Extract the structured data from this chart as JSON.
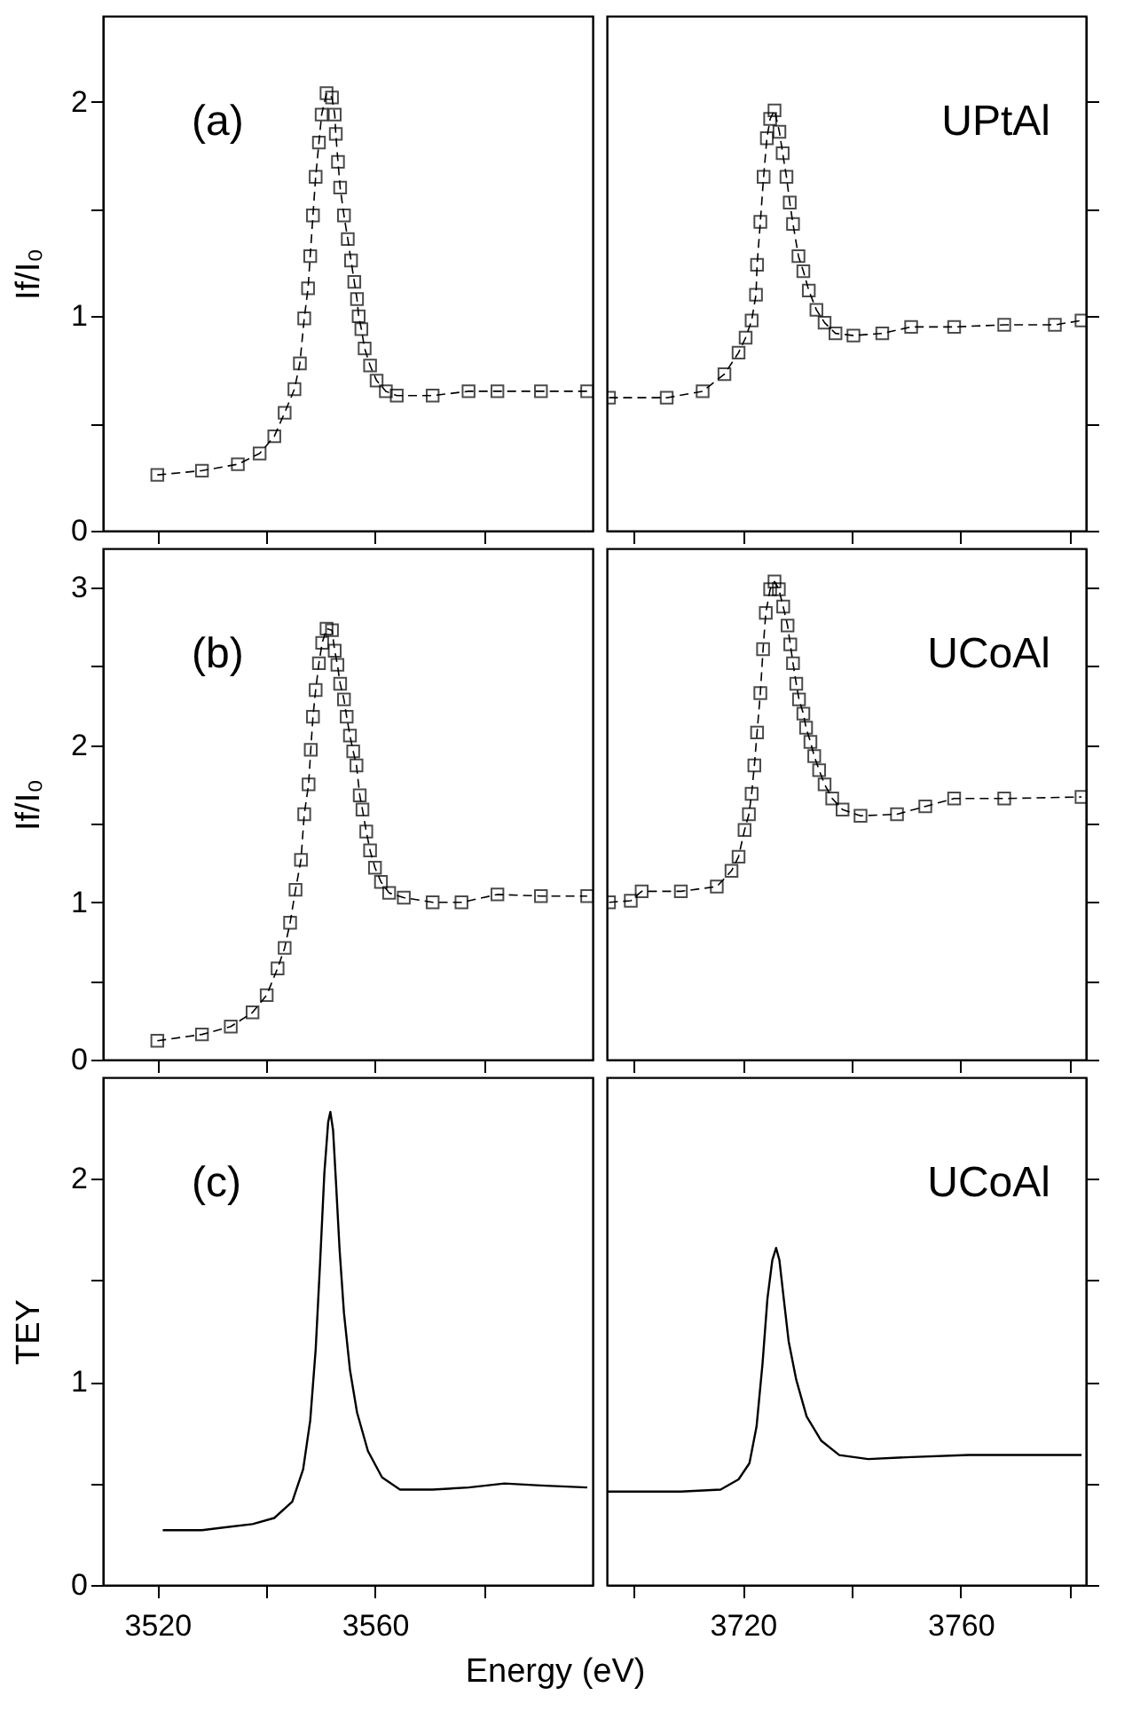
{
  "chart_data": [
    {
      "type": "line",
      "marker": "square",
      "line_style": "dashed",
      "color": "#000000",
      "ylabel": "If/I₀",
      "annotations": [
        "(a)"
      ],
      "tick_labels": "y",
      "xlim": [
        3510,
        3600
      ],
      "xticks": [
        3520,
        {
          "value": 3540,
          "label": null
        },
        3560,
        {
          "value": 3580,
          "label": null
        }
      ],
      "ylim": [
        0,
        2.4
      ],
      "yticks": [
        0,
        {
          "value": 0.5,
          "label": null
        },
        1,
        {
          "value": 1.5,
          "label": null
        },
        2
      ],
      "x": [
        3520,
        3528.2,
        3534.8,
        3538.8,
        3541.5,
        3543.4,
        3545.2,
        3546.2,
        3547,
        3547.7,
        3548.1,
        3548.6,
        3549.1,
        3549.7,
        3550.2,
        3551.1,
        3552.1,
        3552.6,
        3552.8,
        3553.2,
        3553.6,
        3554.3,
        3555,
        3555.6,
        3556.2,
        3556.7,
        3557,
        3557.5,
        3558.1,
        3559.1,
        3560.3,
        3562,
        3564,
        3570.6,
        3577.2,
        3582.5,
        3590.5,
        3599
      ],
      "values": [
        0.26,
        0.28,
        0.31,
        0.36,
        0.44,
        0.55,
        0.66,
        0.78,
        0.99,
        1.13,
        1.28,
        1.47,
        1.65,
        1.81,
        1.94,
        2.04,
        2.02,
        1.94,
        1.85,
        1.72,
        1.6,
        1.47,
        1.36,
        1.26,
        1.16,
        1.08,
        1.0,
        0.94,
        0.85,
        0.77,
        0.7,
        0.65,
        0.63,
        0.63,
        0.65,
        0.65,
        0.65,
        0.65
      ]
    },
    {
      "type": "line",
      "marker": "square",
      "line_style": "dashed",
      "color": "#000000",
      "annotations": [
        "UPtAl"
      ],
      "tick_labels": false,
      "xlim": [
        3695,
        3783
      ],
      "xticks": [
        {
          "value": 3700,
          "label": null
        },
        3720,
        {
          "value": 3740,
          "label": null
        },
        3760,
        {
          "value": 3780,
          "label": null
        }
      ],
      "ylim": [
        0,
        2.4
      ],
      "yticks": [
        0,
        {
          "value": 0.5,
          "label": null
        },
        1,
        {
          "value": 1.5,
          "label": null
        },
        2
      ],
      "x": [
        3695.4,
        3706,
        3712.6,
        3716.6,
        3719.2,
        3720.5,
        3721.6,
        3722.4,
        3722.6,
        3723.2,
        3723.8,
        3724.4,
        3725,
        3725.8,
        3726.7,
        3727.3,
        3728,
        3728.6,
        3729.2,
        3730.2,
        3731.1,
        3732.1,
        3733.5,
        3735,
        3737,
        3740.3,
        3745.6,
        3750.9,
        3758.8,
        3768,
        3777.3,
        3782.2
      ],
      "values": [
        0.62,
        0.62,
        0.65,
        0.73,
        0.83,
        0.9,
        0.98,
        1.1,
        1.24,
        1.44,
        1.65,
        1.83,
        1.92,
        1.96,
        1.86,
        1.76,
        1.65,
        1.53,
        1.43,
        1.28,
        1.21,
        1.12,
        1.03,
        0.97,
        0.92,
        0.91,
        0.92,
        0.95,
        0.95,
        0.96,
        0.96,
        0.98
      ]
    },
    {
      "type": "line",
      "marker": "square",
      "line_style": "dashed",
      "color": "#000000",
      "ylabel": "If/I₀",
      "annotations": [
        "(b)"
      ],
      "tick_labels": "y",
      "xlim": [
        3510,
        3600
      ],
      "xticks": [
        3520,
        {
          "value": 3540,
          "label": null
        },
        3560,
        {
          "value": 3580,
          "label": null
        }
      ],
      "ylim": [
        0,
        3.25
      ],
      "yticks": [
        0,
        {
          "value": 0.5,
          "label": null
        },
        1,
        {
          "value": 1.5,
          "label": null
        },
        2,
        {
          "value": 2.5,
          "label": null
        },
        3
      ],
      "x": [
        3520,
        3528.2,
        3533.5,
        3537.5,
        3540.1,
        3542.1,
        3543.4,
        3544.4,
        3545.4,
        3546.4,
        3547,
        3547.8,
        3548.2,
        3548.6,
        3549.1,
        3549.7,
        3550.3,
        3551.1,
        3552.1,
        3552.6,
        3553.1,
        3553.6,
        3554.3,
        3554.8,
        3555.4,
        3556,
        3556.6,
        3557.2,
        3557.7,
        3558.4,
        3559.1,
        3560,
        3561.1,
        3562.6,
        3565.3,
        3570.6,
        3575.9,
        3582.5,
        3590.5,
        3599
      ],
      "values": [
        0.12,
        0.16,
        0.21,
        0.3,
        0.41,
        0.58,
        0.71,
        0.87,
        1.08,
        1.27,
        1.56,
        1.75,
        1.97,
        2.18,
        2.35,
        2.52,
        2.65,
        2.74,
        2.73,
        2.6,
        2.51,
        2.39,
        2.29,
        2.18,
        2.06,
        1.96,
        1.87,
        1.68,
        1.59,
        1.45,
        1.33,
        1.22,
        1.13,
        1.06,
        1.03,
        1.0,
        1.0,
        1.05,
        1.04,
        1.04
      ]
    },
    {
      "type": "line",
      "marker": "square",
      "line_style": "dashed",
      "color": "#000000",
      "annotations": [
        "UCoAl"
      ],
      "tick_labels": false,
      "xlim": [
        3695,
        3783
      ],
      "xticks": [
        {
          "value": 3700,
          "label": null
        },
        3720,
        {
          "value": 3740,
          "label": null
        },
        3760,
        {
          "value": 3780,
          "label": null
        }
      ],
      "ylim": [
        0,
        3.25
      ],
      "yticks": [
        0,
        {
          "value": 0.5,
          "label": null
        },
        1,
        {
          "value": 1.5,
          "label": null
        },
        2,
        {
          "value": 2.5,
          "label": null
        },
        3
      ],
      "x": [
        3695.4,
        3699.4,
        3701.4,
        3708.6,
        3715.2,
        3717.9,
        3719.2,
        3720.3,
        3721.1,
        3721.6,
        3722.1,
        3722.6,
        3723.2,
        3723.7,
        3724.2,
        3725,
        3725.8,
        3726.6,
        3727.4,
        3728.2,
        3728.7,
        3729.2,
        3729.8,
        3730.3,
        3731.1,
        3731.6,
        3732.4,
        3733.1,
        3734,
        3735,
        3736.4,
        3738.3,
        3741.6,
        3748.3,
        3753.5,
        3758.8,
        3768,
        3782.2
      ],
      "values": [
        1.0,
        1.01,
        1.07,
        1.07,
        1.1,
        1.2,
        1.29,
        1.46,
        1.56,
        1.69,
        1.87,
        2.08,
        2.33,
        2.61,
        2.84,
        2.99,
        3.04,
        2.99,
        2.88,
        2.76,
        2.64,
        2.52,
        2.39,
        2.29,
        2.2,
        2.11,
        2.02,
        1.93,
        1.84,
        1.75,
        1.66,
        1.59,
        1.55,
        1.56,
        1.61,
        1.66,
        1.66,
        1.67
      ]
    },
    {
      "type": "line",
      "color": "#000000",
      "ylabel": "TEY",
      "xlabel": "Energy (eV)",
      "annotations": [
        "(c)"
      ],
      "xlim": [
        3510,
        3600
      ],
      "xticks": [
        3520,
        {
          "value": 3540,
          "label": null
        },
        3560,
        {
          "value": 3580,
          "label": null
        }
      ],
      "ylim": [
        0,
        2.5
      ],
      "yticks": [
        0,
        {
          "value": 0.5,
          "label": null
        },
        1,
        {
          "value": 1.5,
          "label": null
        },
        2
      ],
      "x": [
        3521,
        3528.2,
        3537.5,
        3541.5,
        3544.8,
        3546.8,
        3548.1,
        3549.1,
        3549.9,
        3550.7,
        3551.4,
        3551.8,
        3552.3,
        3552.8,
        3553.5,
        3554.3,
        3555.4,
        3556.7,
        3558.7,
        3561.3,
        3564.6,
        3570.6,
        3577.2,
        3583.8,
        3590.5,
        3599
      ],
      "values": [
        0.27,
        0.27,
        0.3,
        0.33,
        0.41,
        0.57,
        0.81,
        1.16,
        1.58,
        2.03,
        2.28,
        2.33,
        2.24,
        2.0,
        1.65,
        1.34,
        1.06,
        0.85,
        0.66,
        0.53,
        0.47,
        0.47,
        0.48,
        0.5,
        0.49,
        0.48
      ]
    },
    {
      "type": "line",
      "color": "#000000",
      "annotations": [
        "UCoAl"
      ],
      "tick_labels": "x",
      "xlim": [
        3695,
        3783
      ],
      "xticks": [
        {
          "value": 3700,
          "label": null
        },
        3720,
        {
          "value": 3740,
          "label": null
        },
        3760,
        {
          "value": 3780,
          "label": null
        }
      ],
      "ylim": [
        0,
        2.5
      ],
      "yticks": [
        0,
        {
          "value": 0.5,
          "label": null
        },
        1,
        {
          "value": 1.5,
          "label": null
        },
        2
      ],
      "x": [
        3695.1,
        3702,
        3708.6,
        3715.9,
        3719.2,
        3721.2,
        3722.5,
        3723.6,
        3724.5,
        3725.4,
        3726.1,
        3726.7,
        3727.5,
        3728.4,
        3729.8,
        3731.7,
        3734.4,
        3737.7,
        3743,
        3750.9,
        3761.5,
        3772,
        3782.2
      ],
      "values": [
        0.46,
        0.46,
        0.46,
        0.47,
        0.52,
        0.6,
        0.78,
        1.09,
        1.41,
        1.6,
        1.66,
        1.6,
        1.41,
        1.2,
        1.01,
        0.83,
        0.71,
        0.64,
        0.62,
        0.63,
        0.64,
        0.64,
        0.64
      ]
    }
  ]
}
